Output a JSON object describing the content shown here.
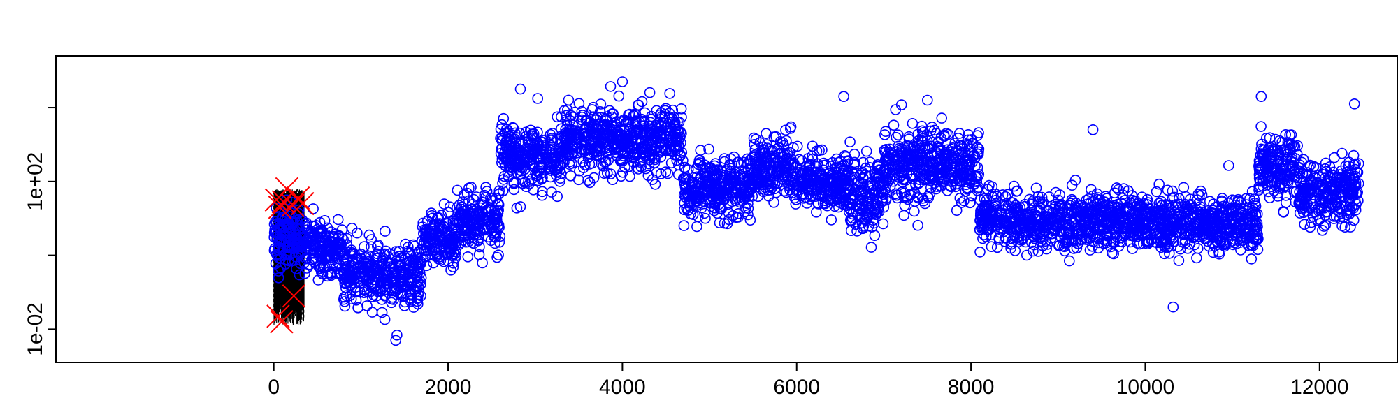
{
  "chart_data": {
    "type": "scatter",
    "title": "",
    "xlabel": "",
    "ylabel": "",
    "xlim": [
      -2500,
      12900
    ],
    "ylim_log10": [
      -2.9,
      5.4
    ],
    "y_scale": "log",
    "grid": false,
    "legend": "none",
    "x_ticks": [
      {
        "value": 0,
        "label": "0"
      },
      {
        "value": 2000,
        "label": "2000"
      },
      {
        "value": 4000,
        "label": "4000"
      },
      {
        "value": 6000,
        "label": "6000"
      },
      {
        "value": 8000,
        "label": "8000"
      },
      {
        "value": 10000,
        "label": "10000"
      },
      {
        "value": 12000,
        "label": "12000"
      }
    ],
    "y_ticks": [
      {
        "log10": -2,
        "label": "1e-02"
      },
      {
        "log10": 0,
        "label": ""
      },
      {
        "log10": 2,
        "label": "1e+02"
      },
      {
        "log10": 4,
        "label": ""
      }
    ],
    "colors": {
      "points": "#0000ff",
      "crosses": "#ff0000",
      "dense_lines": "#000000"
    },
    "series": [
      {
        "marker": "circle",
        "segments": [
          {
            "x0": 0,
            "x1": 350,
            "mean_log10": 0.4,
            "spread_log10": 0.8
          },
          {
            "x0": 350,
            "x1": 800,
            "mean_log10": 0.2,
            "spread_log10": 0.6
          },
          {
            "x0": 800,
            "x1": 1700,
            "mean_log10": -0.5,
            "spread_log10": 0.75
          },
          {
            "x0": 1700,
            "x1": 2100,
            "mean_log10": 0.4,
            "spread_log10": 0.65
          },
          {
            "x0": 2100,
            "x1": 2600,
            "mean_log10": 1.0,
            "spread_log10": 0.65
          },
          {
            "x0": 2600,
            "x1": 3300,
            "mean_log10": 2.7,
            "spread_log10": 0.8
          },
          {
            "x0": 3300,
            "x1": 4700,
            "mean_log10": 3.1,
            "spread_log10": 0.8
          },
          {
            "x0": 4700,
            "x1": 5500,
            "mean_log10": 1.8,
            "spread_log10": 0.7
          },
          {
            "x0": 5500,
            "x1": 5950,
            "mean_log10": 2.4,
            "spread_log10": 0.75
          },
          {
            "x0": 5950,
            "x1": 6600,
            "mean_log10": 2.0,
            "spread_log10": 0.7
          },
          {
            "x0": 6600,
            "x1": 7000,
            "mean_log10": 1.6,
            "spread_log10": 0.9
          },
          {
            "x0": 7000,
            "x1": 8100,
            "mean_log10": 2.4,
            "spread_log10": 0.85
          },
          {
            "x0": 8100,
            "x1": 11300,
            "mean_log10": 0.9,
            "spread_log10": 0.65
          },
          {
            "x0": 11300,
            "x1": 11750,
            "mean_log10": 2.4,
            "spread_log10": 0.8
          },
          {
            "x0": 11750,
            "x1": 12450,
            "mean_log10": 1.7,
            "spread_log10": 0.75
          }
        ],
        "outliers": [
          {
            "x": 2830,
            "log10": 4.5
          },
          {
            "x": 4000,
            "log10": 4.7
          },
          {
            "x": 6540,
            "log10": 4.3
          },
          {
            "x": 11330,
            "log10": 4.3
          },
          {
            "x": 9400,
            "log10": 3.4
          },
          {
            "x": 1400,
            "log10": -2.3
          },
          {
            "x": 10320,
            "log10": -1.4
          },
          {
            "x": 7500,
            "log10": 4.2
          },
          {
            "x": 12400,
            "log10": 4.1
          }
        ]
      },
      {
        "marker": "x",
        "points": [
          {
            "x": 30,
            "log10": 1.5
          },
          {
            "x": 70,
            "log10": 1.3
          },
          {
            "x": 110,
            "log10": 1.45
          },
          {
            "x": 150,
            "log10": 1.8
          },
          {
            "x": 220,
            "log10": 1.35
          },
          {
            "x": 280,
            "log10": 1.55
          },
          {
            "x": 330,
            "log10": 1.4
          },
          {
            "x": 50,
            "log10": -1.65
          },
          {
            "x": 90,
            "log10": -1.8
          },
          {
            "x": 230,
            "log10": -1.1
          }
        ]
      }
    ]
  }
}
